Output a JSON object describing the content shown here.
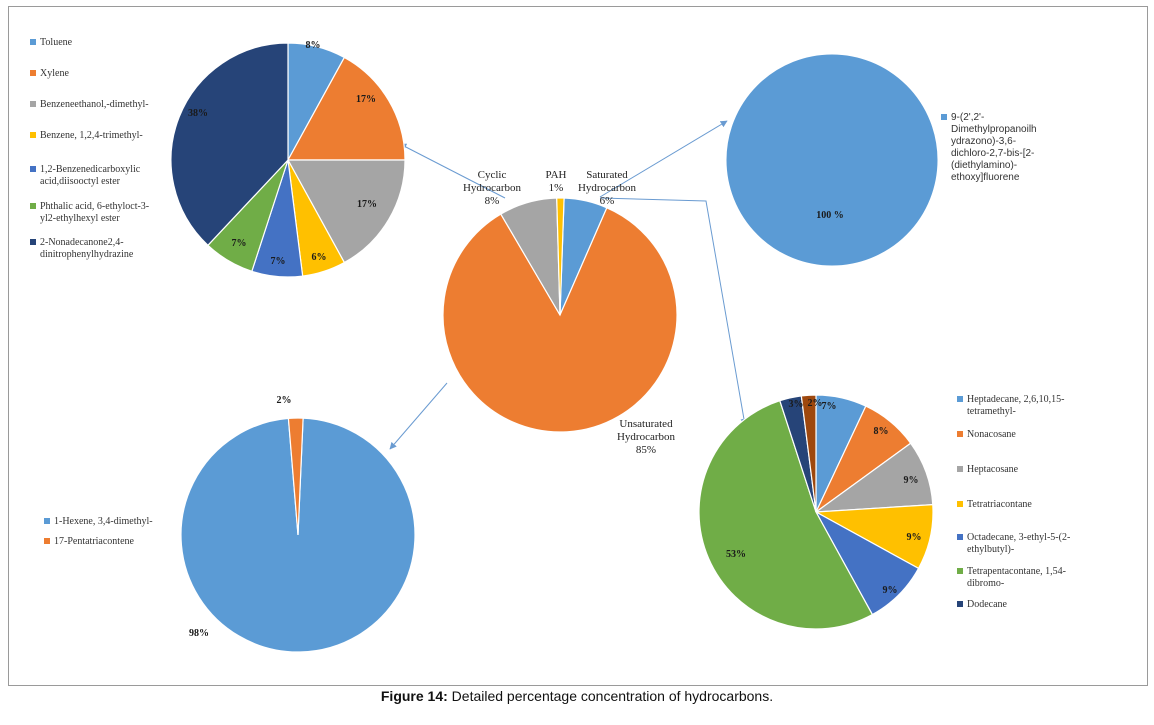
{
  "caption": {
    "label": "Figure 14:",
    "text": "Detailed percentage concentration of hydrocarbons."
  },
  "colors": {
    "blue": "#5B9BD5",
    "orange": "#ED7D31",
    "gray": "#A5A5A5",
    "yellow": "#FFC000",
    "darkblue": "#4472C4",
    "green": "#70AD47",
    "navy": "#264478",
    "brown": "#9E480E",
    "arrow": "#6A9BD1"
  },
  "chart_data": [
    {
      "id": "main",
      "type": "pie",
      "slices": [
        {
          "name": "Saturated Hydrocarbon",
          "value": 6,
          "label": "6%",
          "color": "#5B9BD5"
        },
        {
          "name": "Unsaturated Hydrocarbon",
          "value": 85,
          "label": "85%",
          "color": "#ED7D31"
        },
        {
          "name": "Cyclic Hydrocarbon",
          "value": 8,
          "label": "8%",
          "color": "#A5A5A5"
        },
        {
          "name": "PAH",
          "value": 1,
          "label": "1%",
          "color": "#FFC000"
        }
      ]
    },
    {
      "id": "cyclic",
      "type": "pie",
      "slices": [
        {
          "name": "Toluene",
          "value": 8,
          "label": "8%",
          "color": "#5B9BD5"
        },
        {
          "name": "Xylene",
          "value": 17,
          "label": "17%",
          "color": "#ED7D31"
        },
        {
          "name": "Benzeneethanol,-dimethyl-",
          "value": 17,
          "label": "17%",
          "color": "#A5A5A5"
        },
        {
          "name": "Benzene, 1,2,4-trimethyl-",
          "value": 6,
          "label": "6%",
          "color": "#FFC000"
        },
        {
          "name": "1,2-Benzenedicarboxylic acid,diisooctyl ester",
          "value": 7,
          "label": "7%",
          "color": "#4472C4"
        },
        {
          "name": "Phthalic acid, 6-ethyloct-3-yl2-ethylhexyl ester",
          "value": 7,
          "label": "7%",
          "color": "#70AD47"
        },
        {
          "name": "2-Nonadecanone2,4-dinitrophenylhydrazine",
          "value": 38,
          "label": "38%",
          "color": "#264478"
        }
      ],
      "legend": [
        [
          "Toluene"
        ],
        [
          "Xylene"
        ],
        [
          "Benzeneethanol,-dimethyl-"
        ],
        [
          "Benzene, 1,2,4-trimethyl-"
        ],
        [
          "1,2-Benzenedicarboxylic",
          "acid,diisooctyl ester"
        ],
        [
          "Phthalic acid, 6-ethyloct-3-",
          "yl2-ethylhexyl ester"
        ],
        [
          "2-Nonadecanone2,4-",
          "dinitrophenylhydrazine"
        ]
      ]
    },
    {
      "id": "pah",
      "type": "pie",
      "slices": [
        {
          "name": "9-(2',2'-Dimethylpropanoilhydrazono)-3,6-dichloro-2,7-bis-[2-(diethylamino)-ethoxy]fluorene",
          "value": 100,
          "label": "100 %",
          "color": "#5B9BD5"
        }
      ],
      "legend": [
        [
          "9-(2',2'-",
          "Dimethylpropanoilh",
          "ydrazono)-3,6-",
          "dichloro-2,7-bis-[2-",
          "(diethylamino)-",
          "ethoxy]fluorene"
        ]
      ]
    },
    {
      "id": "unsaturated",
      "type": "pie",
      "slices": [
        {
          "name": "1-Hexene, 3,4-dimethyl-",
          "value": 98,
          "label": "98%",
          "color": "#5B9BD5"
        },
        {
          "name": "17-Pentatriacontene",
          "value": 2,
          "label": "2%",
          "color": "#ED7D31"
        }
      ],
      "legend": [
        [
          "1-Hexene, 3,4-dimethyl-"
        ],
        [
          "17-Pentatriacontene"
        ]
      ]
    },
    {
      "id": "saturated",
      "type": "pie",
      "slices": [
        {
          "name": "Heptadecane, 2,6,10,15-tetramethyl-",
          "value": 7,
          "label": "7%",
          "color": "#5B9BD5"
        },
        {
          "name": "Nonacosane",
          "value": 8,
          "label": "8%",
          "color": "#ED7D31"
        },
        {
          "name": "Heptacosane",
          "value": 9,
          "label": "9%",
          "color": "#A5A5A5"
        },
        {
          "name": "Tetratriacontane",
          "value": 9,
          "label": "9%",
          "color": "#FFC000"
        },
        {
          "name": "Octadecane, 3-ethyl-5-(2-ethylbutyl)-",
          "value": 9,
          "label": "9%",
          "color": "#4472C4"
        },
        {
          "name": "Tetrapentacontane, 1,54-dibromo-",
          "value": 53,
          "label": "53%",
          "color": "#70AD47"
        },
        {
          "name": "Dodecane",
          "value": 3,
          "label": "3%",
          "color": "#264478"
        },
        {
          "name": "",
          "value": 2,
          "label": "2%",
          "color": "#9E480E"
        }
      ],
      "legend": [
        [
          "Heptadecane, 2,6,10,15-",
          "tetramethyl-"
        ],
        [
          "Nonacosane"
        ],
        [
          "Heptacosane"
        ],
        [
          "Tetratriacontane"
        ],
        [
          "Octadecane, 3-ethyl-5-(2-",
          "ethylbutyl)-"
        ],
        [
          "Tetrapentacontane, 1,54-",
          "dibromo-"
        ],
        [
          "Dodecane"
        ]
      ]
    }
  ]
}
